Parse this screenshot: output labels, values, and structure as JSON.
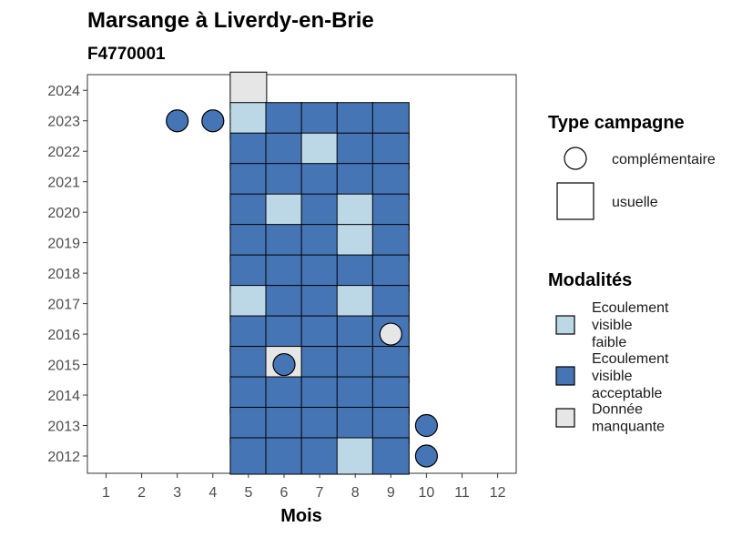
{
  "chart_data": {
    "type": "heatmap",
    "title": "Marsange à Liverdy-en-Brie",
    "subtitle": "F4770001",
    "xlabel": "Mois",
    "ylabel": "",
    "x_ticks": [
      1,
      2,
      3,
      4,
      5,
      6,
      7,
      8,
      9,
      10,
      11,
      12
    ],
    "y_ticks": [
      2012,
      2013,
      2014,
      2015,
      2016,
      2017,
      2018,
      2019,
      2020,
      2021,
      2022,
      2023,
      2024
    ],
    "modalites": [
      {
        "key": "faible",
        "label_lines": [
          "Ecoulement",
          "visible",
          "faible"
        ],
        "color": "#bcd7e6"
      },
      {
        "key": "acceptable",
        "label_lines": [
          "Ecoulement",
          "visible",
          "acceptable"
        ],
        "color": "#4575b4"
      },
      {
        "key": "manquante",
        "label_lines": [
          "Donnée",
          "manquante"
        ],
        "color": "#e6e6e6"
      }
    ],
    "type_campagne": {
      "title": "Type campagne",
      "complementaire": "complémentaire",
      "usuelle": "usuelle"
    },
    "legend_modalites_title": "Modalités",
    "usuelle": [
      {
        "year": 2024,
        "month": 5,
        "value": "manquante"
      },
      {
        "year": 2023,
        "month": 5,
        "value": "faible"
      },
      {
        "year": 2023,
        "month": 6,
        "value": "acceptable"
      },
      {
        "year": 2023,
        "month": 7,
        "value": "acceptable"
      },
      {
        "year": 2023,
        "month": 8,
        "value": "acceptable"
      },
      {
        "year": 2023,
        "month": 9,
        "value": "acceptable"
      },
      {
        "year": 2022,
        "month": 5,
        "value": "acceptable"
      },
      {
        "year": 2022,
        "month": 6,
        "value": "acceptable"
      },
      {
        "year": 2022,
        "month": 7,
        "value": "faible"
      },
      {
        "year": 2022,
        "month": 8,
        "value": "acceptable"
      },
      {
        "year": 2022,
        "month": 9,
        "value": "acceptable"
      },
      {
        "year": 2021,
        "month": 5,
        "value": "acceptable"
      },
      {
        "year": 2021,
        "month": 6,
        "value": "acceptable"
      },
      {
        "year": 2021,
        "month": 7,
        "value": "acceptable"
      },
      {
        "year": 2021,
        "month": 8,
        "value": "acceptable"
      },
      {
        "year": 2021,
        "month": 9,
        "value": "acceptable"
      },
      {
        "year": 2020,
        "month": 5,
        "value": "acceptable"
      },
      {
        "year": 2020,
        "month": 6,
        "value": "faible"
      },
      {
        "year": 2020,
        "month": 7,
        "value": "acceptable"
      },
      {
        "year": 2020,
        "month": 8,
        "value": "faible"
      },
      {
        "year": 2020,
        "month": 9,
        "value": "acceptable"
      },
      {
        "year": 2019,
        "month": 5,
        "value": "acceptable"
      },
      {
        "year": 2019,
        "month": 6,
        "value": "acceptable"
      },
      {
        "year": 2019,
        "month": 7,
        "value": "acceptable"
      },
      {
        "year": 2019,
        "month": 8,
        "value": "faible"
      },
      {
        "year": 2019,
        "month": 9,
        "value": "acceptable"
      },
      {
        "year": 2018,
        "month": 5,
        "value": "acceptable"
      },
      {
        "year": 2018,
        "month": 6,
        "value": "acceptable"
      },
      {
        "year": 2018,
        "month": 7,
        "value": "acceptable"
      },
      {
        "year": 2018,
        "month": 8,
        "value": "acceptable"
      },
      {
        "year": 2018,
        "month": 9,
        "value": "acceptable"
      },
      {
        "year": 2017,
        "month": 5,
        "value": "faible"
      },
      {
        "year": 2017,
        "month": 6,
        "value": "acceptable"
      },
      {
        "year": 2017,
        "month": 7,
        "value": "acceptable"
      },
      {
        "year": 2017,
        "month": 8,
        "value": "faible"
      },
      {
        "year": 2017,
        "month": 9,
        "value": "acceptable"
      },
      {
        "year": 2016,
        "month": 5,
        "value": "acceptable"
      },
      {
        "year": 2016,
        "month": 6,
        "value": "acceptable"
      },
      {
        "year": 2016,
        "month": 7,
        "value": "acceptable"
      },
      {
        "year": 2016,
        "month": 8,
        "value": "acceptable"
      },
      {
        "year": 2016,
        "month": 9,
        "value": "acceptable"
      },
      {
        "year": 2015,
        "month": 5,
        "value": "acceptable"
      },
      {
        "year": 2015,
        "month": 6,
        "value": "manquante"
      },
      {
        "year": 2015,
        "month": 7,
        "value": "acceptable"
      },
      {
        "year": 2015,
        "month": 8,
        "value": "acceptable"
      },
      {
        "year": 2015,
        "month": 9,
        "value": "acceptable"
      },
      {
        "year": 2014,
        "month": 5,
        "value": "acceptable"
      },
      {
        "year": 2014,
        "month": 6,
        "value": "acceptable"
      },
      {
        "year": 2014,
        "month": 7,
        "value": "acceptable"
      },
      {
        "year": 2014,
        "month": 8,
        "value": "acceptable"
      },
      {
        "year": 2014,
        "month": 9,
        "value": "acceptable"
      },
      {
        "year": 2013,
        "month": 5,
        "value": "acceptable"
      },
      {
        "year": 2013,
        "month": 6,
        "value": "acceptable"
      },
      {
        "year": 2013,
        "month": 7,
        "value": "acceptable"
      },
      {
        "year": 2013,
        "month": 8,
        "value": "acceptable"
      },
      {
        "year": 2013,
        "month": 9,
        "value": "acceptable"
      },
      {
        "year": 2012,
        "month": 5,
        "value": "acceptable"
      },
      {
        "year": 2012,
        "month": 6,
        "value": "acceptable"
      },
      {
        "year": 2012,
        "month": 7,
        "value": "acceptable"
      },
      {
        "year": 2012,
        "month": 8,
        "value": "faible"
      },
      {
        "year": 2012,
        "month": 9,
        "value": "acceptable"
      }
    ],
    "complementaire": [
      {
        "year": 2023,
        "month": 3,
        "value": "acceptable"
      },
      {
        "year": 2023,
        "month": 4,
        "value": "acceptable"
      },
      {
        "year": 2016,
        "month": 9,
        "value": "manquante"
      },
      {
        "year": 2015,
        "month": 6,
        "value": "acceptable"
      },
      {
        "year": 2013,
        "month": 10,
        "value": "acceptable"
      },
      {
        "year": 2012,
        "month": 10,
        "value": "acceptable"
      }
    ],
    "grid": false,
    "legend_position": "right"
  }
}
